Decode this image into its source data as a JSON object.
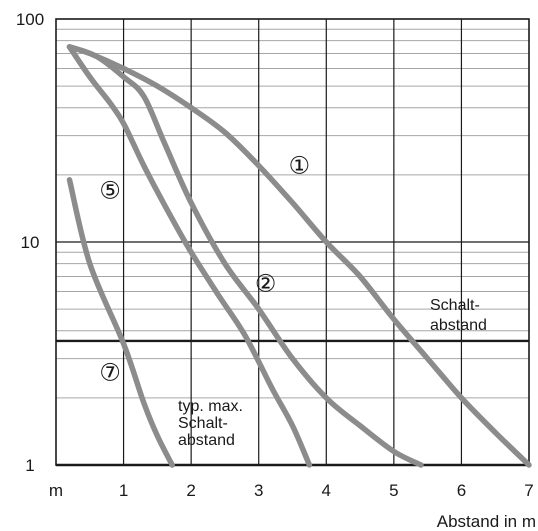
{
  "chart_data": {
    "type": "line",
    "title": "",
    "xlabel": "Abstand in m",
    "ylabel": "",
    "x_unit_label": "m",
    "y_scale": "log",
    "xlim": [
      0,
      7
    ],
    "ylim": [
      1,
      100
    ],
    "grid": true,
    "x_ticks": [
      1,
      2,
      3,
      4,
      5,
      6,
      7
    ],
    "y_ticks": [
      1,
      10,
      100
    ],
    "series": [
      {
        "name": "①",
        "x": [
          0.2,
          0.5,
          1.0,
          1.5,
          2.0,
          2.5,
          3.0,
          3.5,
          4.0,
          4.5,
          5.0,
          5.5,
          6.0,
          6.5,
          7.0
        ],
        "y": [
          75,
          70,
          60,
          50,
          40,
          31,
          22,
          15,
          10,
          7,
          4.5,
          3,
          2,
          1.4,
          1
        ]
      },
      {
        "name": "②",
        "x": [
          0.2,
          0.6,
          1.0,
          1.3,
          1.6,
          2.0,
          2.5,
          3.0,
          3.5,
          4.0,
          4.5,
          5.0,
          5.4
        ],
        "y": [
          75,
          68,
          55,
          45,
          28,
          15,
          8,
          5,
          3,
          2,
          1.5,
          1.15,
          1
        ]
      },
      {
        "name": "⑤",
        "x": [
          0.2,
          0.5,
          0.8,
          1.0,
          1.3,
          1.7,
          2.0,
          2.4,
          2.8,
          3.2,
          3.5,
          3.75
        ],
        "y": [
          75,
          55,
          42,
          34,
          22,
          13,
          9,
          5.8,
          3.8,
          2.2,
          1.5,
          1
        ]
      },
      {
        "name": "⑦",
        "x": [
          0.2,
          0.5,
          1.0,
          1.3,
          1.5,
          1.72
        ],
        "y": [
          19,
          8,
          3.5,
          1.9,
          1.35,
          1
        ]
      }
    ],
    "threshold_lines": [
      {
        "y": 3.6,
        "label": "Schalt-\nabstand"
      },
      {
        "y": 1.0,
        "label": "typ. max.\nSchalt-\nabstand"
      }
    ],
    "annotations": [
      {
        "text": "①",
        "x": 3.6,
        "y": 22
      },
      {
        "text": "②",
        "x": 3.1,
        "y": 6.5
      },
      {
        "text": "⑤",
        "x": 0.8,
        "y": 17
      },
      {
        "text": "⑦",
        "x": 0.8,
        "y": 2.6
      }
    ],
    "labels": {
      "upper_threshold_line1": "Schalt-",
      "upper_threshold_line2": "abstand",
      "lower_threshold_line1": "typ. max.",
      "lower_threshold_line2": "Schalt-",
      "lower_threshold_line3": "abstand"
    }
  },
  "colors": {
    "curve": "#8c8c8c",
    "frame": "#1a1a1a",
    "grid": "#1a1a1a",
    "minor_grid": "#a6a6a6",
    "threshold": "#1a1a1a"
  }
}
